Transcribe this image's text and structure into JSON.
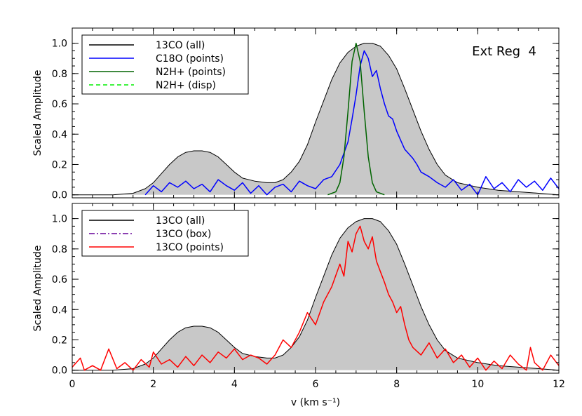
{
  "chart_data": [
    {
      "type": "line",
      "panel": "top",
      "ylabel": "Scaled Amplitude",
      "xlim": [
        0,
        12
      ],
      "ylim": [
        -0.02,
        1.1
      ],
      "xticks": [
        0,
        2,
        4,
        6,
        8,
        10,
        12
      ],
      "yticks": [
        0.0,
        0.2,
        0.4,
        0.6,
        0.8,
        1.0
      ],
      "ytick_labels": [
        "0.0",
        "0.2",
        "0.4",
        "0.6",
        "0.8",
        "1.0"
      ],
      "annotation": "Ext Reg  4",
      "legend_position": "top-left",
      "legend": [
        {
          "label": "13CO (all)",
          "color": "#000000",
          "dash": "solid"
        },
        {
          "label": "C18O (points)",
          "color": "#0000ff",
          "dash": "solid"
        },
        {
          "label": "N2H+ (points)",
          "color": "#006400",
          "dash": "solid"
        },
        {
          "label": "N2H+ (disp)",
          "color": "#00ee00",
          "dash": "dashed"
        }
      ],
      "series": [
        {
          "name": "13CO (all)",
          "style": "filled",
          "fill": "#c8c8c8",
          "color": "#000000",
          "x": [
            0,
            0.5,
            1.0,
            1.5,
            1.8,
            2.0,
            2.2,
            2.4,
            2.6,
            2.8,
            3.0,
            3.2,
            3.4,
            3.6,
            3.8,
            4.0,
            4.2,
            4.5,
            4.8,
            5.0,
            5.2,
            5.4,
            5.6,
            5.8,
            6.0,
            6.2,
            6.4,
            6.6,
            6.8,
            7.0,
            7.2,
            7.4,
            7.6,
            7.8,
            8.0,
            8.2,
            8.4,
            8.6,
            8.8,
            9.0,
            9.2,
            9.5,
            10.0,
            10.5,
            11.0,
            11.5,
            12.0
          ],
          "y": [
            0.0,
            0.0,
            0.0,
            0.01,
            0.04,
            0.08,
            0.14,
            0.2,
            0.25,
            0.28,
            0.29,
            0.29,
            0.28,
            0.25,
            0.2,
            0.15,
            0.11,
            0.09,
            0.08,
            0.08,
            0.1,
            0.15,
            0.22,
            0.33,
            0.48,
            0.62,
            0.76,
            0.87,
            0.94,
            0.98,
            1.0,
            1.0,
            0.98,
            0.92,
            0.83,
            0.7,
            0.56,
            0.42,
            0.3,
            0.2,
            0.13,
            0.08,
            0.05,
            0.03,
            0.02,
            0.01,
            0.0
          ]
        },
        {
          "name": "C18O (points)",
          "color": "#0000ff",
          "x": [
            1.8,
            2.0,
            2.2,
            2.4,
            2.6,
            2.8,
            3.0,
            3.2,
            3.4,
            3.6,
            3.8,
            4.0,
            4.2,
            4.4,
            4.6,
            4.8,
            5.0,
            5.2,
            5.4,
            5.6,
            5.8,
            6.0,
            6.2,
            6.4,
            6.6,
            6.8,
            6.9,
            7.0,
            7.1,
            7.2,
            7.3,
            7.4,
            7.5,
            7.6,
            7.7,
            7.8,
            7.9,
            8.0,
            8.1,
            8.2,
            8.3,
            8.4,
            8.5,
            8.6,
            8.8,
            9.0,
            9.2,
            9.4,
            9.6,
            9.8,
            10.0,
            10.2,
            10.4,
            10.6,
            10.8,
            11.0,
            11.2,
            11.4,
            11.6,
            11.8,
            12.0
          ],
          "y": [
            0.0,
            0.06,
            0.02,
            0.08,
            0.05,
            0.09,
            0.04,
            0.07,
            0.02,
            0.1,
            0.06,
            0.03,
            0.08,
            0.01,
            0.06,
            0.0,
            0.05,
            0.07,
            0.02,
            0.09,
            0.06,
            0.04,
            0.1,
            0.12,
            0.2,
            0.35,
            0.5,
            0.66,
            0.85,
            0.95,
            0.9,
            0.78,
            0.82,
            0.7,
            0.6,
            0.52,
            0.5,
            0.42,
            0.36,
            0.3,
            0.27,
            0.24,
            0.2,
            0.15,
            0.12,
            0.08,
            0.05,
            0.1,
            0.03,
            0.07,
            0.0,
            0.12,
            0.04,
            0.08,
            0.02,
            0.1,
            0.05,
            0.09,
            0.03,
            0.11,
            0.04
          ]
        },
        {
          "name": "N2H+ (points)",
          "color": "#006400",
          "x": [
            6.3,
            6.5,
            6.6,
            6.7,
            6.8,
            6.9,
            7.0,
            7.1,
            7.2,
            7.3,
            7.4,
            7.5,
            7.7
          ],
          "y": [
            0.0,
            0.02,
            0.08,
            0.25,
            0.55,
            0.88,
            1.0,
            0.88,
            0.55,
            0.25,
            0.08,
            0.02,
            0.0
          ]
        }
      ]
    },
    {
      "type": "line",
      "panel": "bottom",
      "xlabel": "v (km s⁻¹)",
      "ylabel": "Scaled Amplitude",
      "xlim": [
        0,
        12
      ],
      "ylim": [
        -0.02,
        1.1
      ],
      "xticks": [
        0,
        2,
        4,
        6,
        8,
        10,
        12
      ],
      "xtick_labels": [
        "0",
        "2",
        "4",
        "6",
        "8",
        "10",
        "12"
      ],
      "yticks": [
        0.0,
        0.2,
        0.4,
        0.6,
        0.8,
        1.0
      ],
      "ytick_labels": [
        "0.0",
        "0.2",
        "0.4",
        "0.6",
        "0.8",
        "1.0"
      ],
      "legend_position": "top-left",
      "legend": [
        {
          "label": "13CO (all)",
          "color": "#000000",
          "dash": "solid"
        },
        {
          "label": "13CO (box)",
          "color": "#660099",
          "dash": "dashdot"
        },
        {
          "label": "13CO (points)",
          "color": "#ff0000",
          "dash": "solid"
        }
      ],
      "series": [
        {
          "name": "13CO (all)",
          "style": "filled",
          "fill": "#c8c8c8",
          "color": "#000000",
          "x": [
            0,
            0.5,
            1.0,
            1.5,
            1.8,
            2.0,
            2.2,
            2.4,
            2.6,
            2.8,
            3.0,
            3.2,
            3.4,
            3.6,
            3.8,
            4.0,
            4.2,
            4.5,
            4.8,
            5.0,
            5.2,
            5.4,
            5.6,
            5.8,
            6.0,
            6.2,
            6.4,
            6.6,
            6.8,
            7.0,
            7.2,
            7.4,
            7.6,
            7.8,
            8.0,
            8.2,
            8.4,
            8.6,
            8.8,
            9.0,
            9.2,
            9.5,
            10.0,
            10.5,
            11.0,
            11.5,
            12.0
          ],
          "y": [
            0.0,
            0.0,
            0.0,
            0.01,
            0.04,
            0.08,
            0.14,
            0.2,
            0.25,
            0.28,
            0.29,
            0.29,
            0.28,
            0.25,
            0.2,
            0.15,
            0.11,
            0.09,
            0.08,
            0.08,
            0.1,
            0.15,
            0.22,
            0.33,
            0.48,
            0.62,
            0.76,
            0.87,
            0.94,
            0.98,
            1.0,
            1.0,
            0.98,
            0.92,
            0.83,
            0.7,
            0.56,
            0.42,
            0.3,
            0.2,
            0.13,
            0.08,
            0.05,
            0.03,
            0.02,
            0.01,
            0.0
          ]
        },
        {
          "name": "13CO (points)",
          "color": "#ff0000",
          "x": [
            0.0,
            0.2,
            0.3,
            0.5,
            0.7,
            0.9,
            1.1,
            1.3,
            1.5,
            1.7,
            1.9,
            2.0,
            2.2,
            2.4,
            2.6,
            2.8,
            3.0,
            3.2,
            3.4,
            3.6,
            3.8,
            4.0,
            4.2,
            4.4,
            4.6,
            4.8,
            5.0,
            5.2,
            5.4,
            5.6,
            5.8,
            6.0,
            6.2,
            6.4,
            6.6,
            6.7,
            6.8,
            6.9,
            7.0,
            7.1,
            7.2,
            7.3,
            7.4,
            7.5,
            7.6,
            7.7,
            7.8,
            7.9,
            8.0,
            8.1,
            8.2,
            8.3,
            8.4,
            8.6,
            8.8,
            9.0,
            9.2,
            9.4,
            9.6,
            9.8,
            10.0,
            10.2,
            10.4,
            10.6,
            10.8,
            11.0,
            11.2,
            11.3,
            11.4,
            11.6,
            11.8,
            12.0
          ],
          "y": [
            0.02,
            0.08,
            0.0,
            0.03,
            0.0,
            0.14,
            0.01,
            0.05,
            0.0,
            0.07,
            0.02,
            0.12,
            0.04,
            0.07,
            0.02,
            0.09,
            0.03,
            0.1,
            0.05,
            0.12,
            0.08,
            0.14,
            0.07,
            0.1,
            0.08,
            0.04,
            0.1,
            0.2,
            0.15,
            0.25,
            0.38,
            0.3,
            0.45,
            0.55,
            0.7,
            0.62,
            0.85,
            0.78,
            0.9,
            0.95,
            0.85,
            0.8,
            0.88,
            0.72,
            0.65,
            0.58,
            0.5,
            0.45,
            0.38,
            0.42,
            0.3,
            0.2,
            0.15,
            0.1,
            0.18,
            0.08,
            0.14,
            0.05,
            0.1,
            0.02,
            0.08,
            0.0,
            0.06,
            0.01,
            0.1,
            0.04,
            0.0,
            0.15,
            0.05,
            0.0,
            0.1,
            0.03
          ]
        }
      ]
    }
  ]
}
